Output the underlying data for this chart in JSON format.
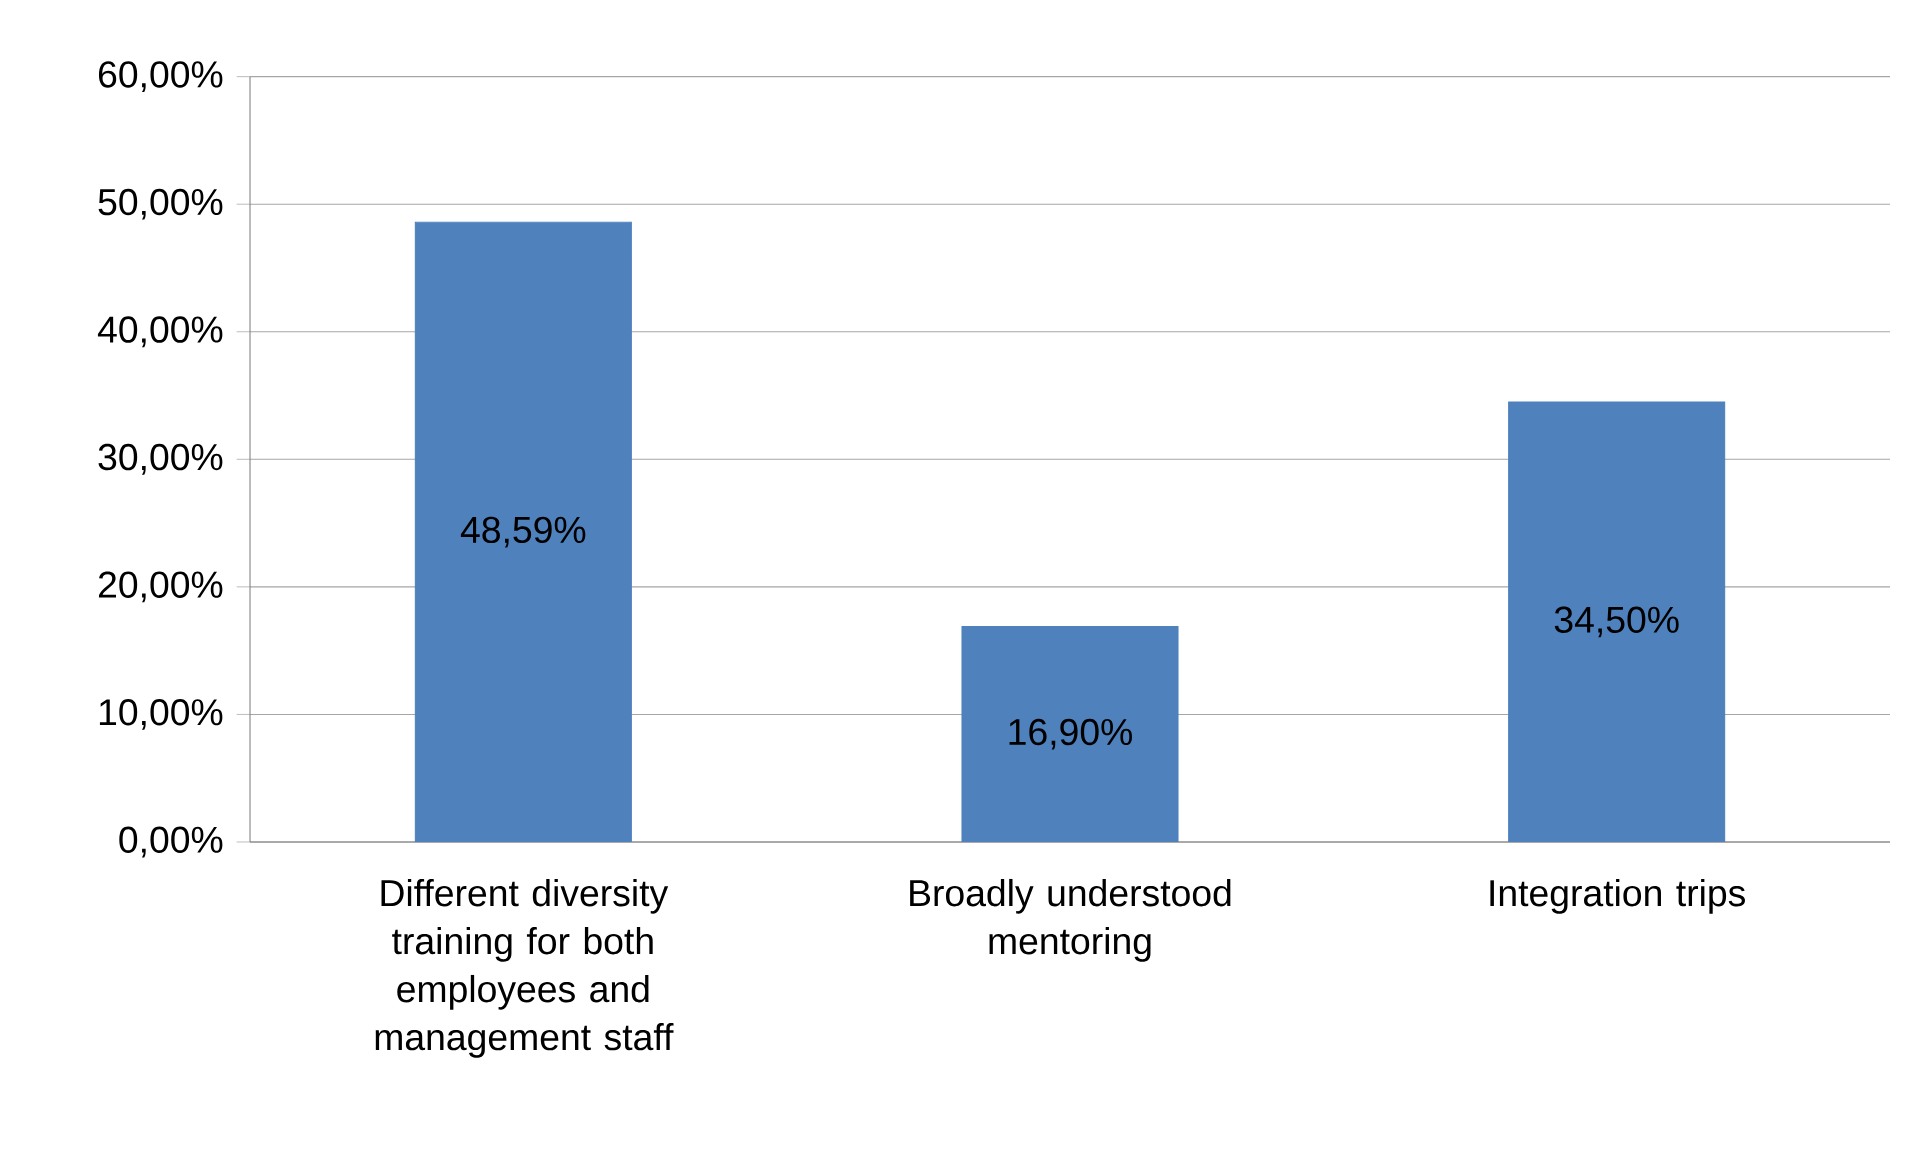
{
  "chart_data": {
    "type": "bar",
    "categories": [
      "Different diversity training for both employees and management staff",
      "Broadly understood mentoring",
      "Integration trips"
    ],
    "values": [
      48.59,
      16.9,
      34.5
    ],
    "value_labels": [
      "48,59%",
      "16,90%",
      "34,50%"
    ],
    "color": "#4f81bd",
    "ylim": [
      0,
      60
    ],
    "yticks": [
      {
        "value": 0,
        "label": "0,00%"
      },
      {
        "value": 10,
        "label": "10,00%"
      },
      {
        "value": 20,
        "label": "20,00%"
      },
      {
        "value": 30,
        "label": "30,00%"
      },
      {
        "value": 40,
        "label": "40,00%"
      },
      {
        "value": 50,
        "label": "50,00%"
      },
      {
        "value": 60,
        "label": "60,00%"
      }
    ],
    "grid": "y"
  }
}
